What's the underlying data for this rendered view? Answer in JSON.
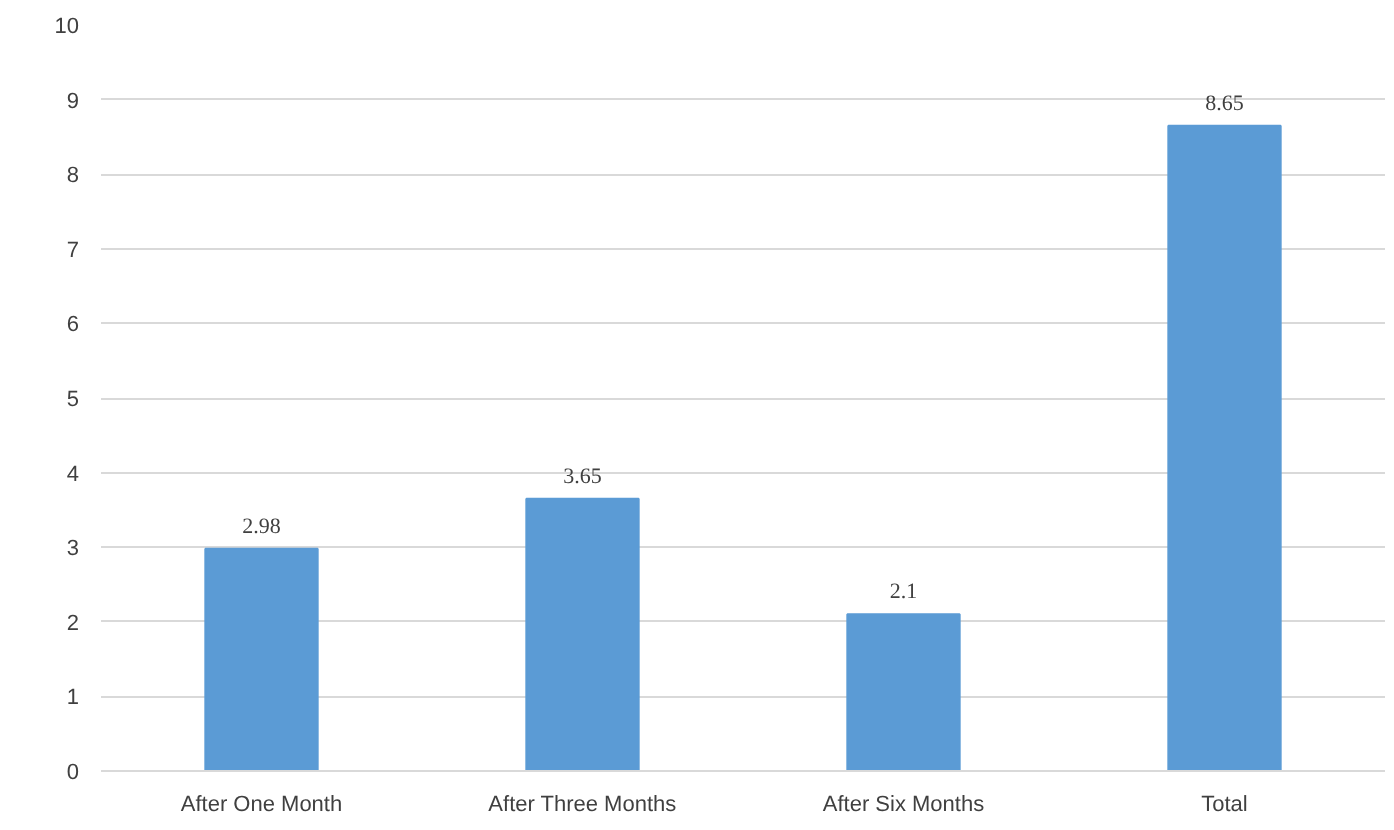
{
  "chart_data": {
    "type": "bar",
    "categories": [
      "After One Month",
      "After Three Months",
      "After Six Months",
      "Total"
    ],
    "values": [
      2.98,
      3.65,
      2.1,
      8.65
    ],
    "color": "#5b9bd5",
    "data_labels": true,
    "ylim": [
      0,
      10
    ],
    "yticks": [
      0,
      1,
      2,
      3,
      4,
      5,
      6,
      7,
      8,
      9,
      10
    ],
    "grid": "y"
  }
}
